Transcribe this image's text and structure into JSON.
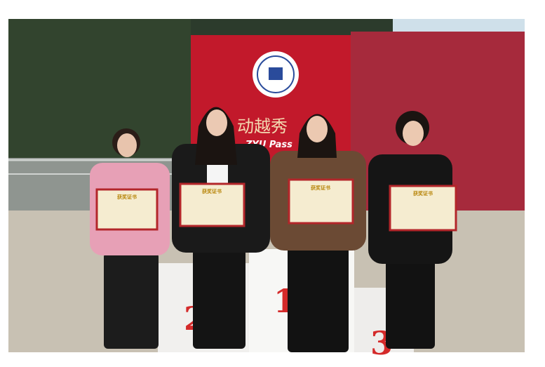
{
  "scene": {
    "banner_text": "动越秀",
    "banner_subtext": "ZYU Pass",
    "podium": [
      "2",
      "1",
      "3"
    ],
    "certificates": [
      "获奖证书",
      "获奖证书",
      "获奖证书",
      "获奖证书"
    ]
  }
}
